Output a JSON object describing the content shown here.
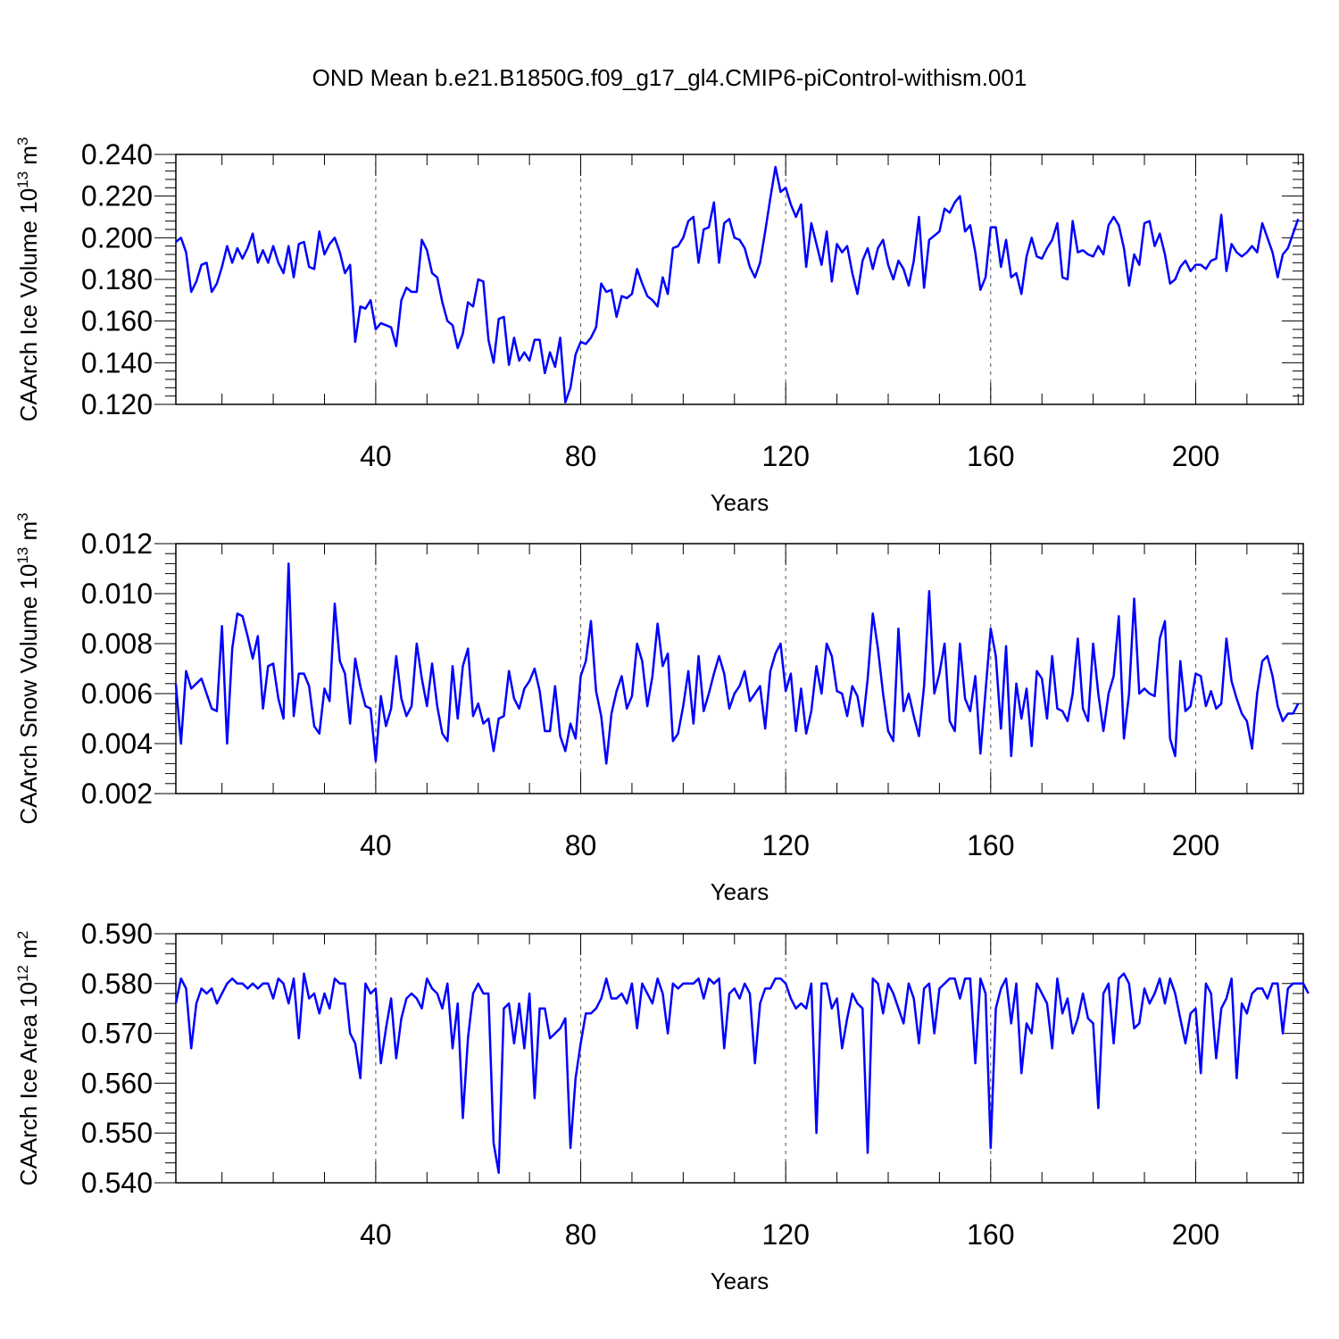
{
  "title": "OND Mean b.e21.B1850G.f09_g17_gl4.CMIP6-piControl-withism.001",
  "colors": {
    "series": "#0000ff",
    "axis": "#000000",
    "grid": "#555555"
  },
  "chart_data": [
    {
      "type": "line",
      "title": "",
      "ylabel_prefix": "CAArch Ice Volume 10",
      "ylabel_exp": "13",
      "ylabel_unit": " m",
      "ylabel_unit_exp": "3",
      "xlabel": "Years",
      "xlim": [
        1,
        221
      ],
      "ylim": [
        0.12,
        0.24
      ],
      "yticks": [
        0.12,
        0.14,
        0.16,
        0.18,
        0.2,
        0.22,
        0.24
      ],
      "ytick_labels": [
        "0.120",
        "0.140",
        "0.160",
        "0.180",
        "0.200",
        "0.220",
        "0.240"
      ],
      "xticks": [
        40,
        80,
        120,
        160,
        200
      ],
      "xtick_labels": [
        "40",
        "80",
        "120",
        "160",
        "200"
      ],
      "grid": "vertical dashed at x ticks",
      "x_start": 1,
      "values": [
        0.198,
        0.2,
        0.193,
        0.174,
        0.179,
        0.187,
        0.188,
        0.174,
        0.178,
        0.186,
        0.196,
        0.188,
        0.195,
        0.19,
        0.195,
        0.202,
        0.188,
        0.194,
        0.188,
        0.196,
        0.188,
        0.183,
        0.196,
        0.181,
        0.197,
        0.198,
        0.186,
        0.185,
        0.203,
        0.192,
        0.197,
        0.2,
        0.193,
        0.183,
        0.187,
        0.15,
        0.167,
        0.166,
        0.17,
        0.156,
        0.159,
        0.158,
        0.157,
        0.148,
        0.17,
        0.176,
        0.174,
        0.174,
        0.199,
        0.194,
        0.183,
        0.181,
        0.169,
        0.16,
        0.158,
        0.147,
        0.154,
        0.169,
        0.167,
        0.18,
        0.179,
        0.151,
        0.14,
        0.161,
        0.162,
        0.139,
        0.152,
        0.141,
        0.145,
        0.141,
        0.151,
        0.151,
        0.135,
        0.145,
        0.138,
        0.152,
        0.121,
        0.128,
        0.144,
        0.15,
        0.149,
        0.152,
        0.157,
        0.178,
        0.174,
        0.175,
        0.162,
        0.172,
        0.171,
        0.173,
        0.185,
        0.178,
        0.172,
        0.17,
        0.167,
        0.181,
        0.173,
        0.195,
        0.196,
        0.2,
        0.208,
        0.21,
        0.188,
        0.204,
        0.205,
        0.217,
        0.188,
        0.207,
        0.209,
        0.2,
        0.199,
        0.195,
        0.186,
        0.181,
        0.188,
        0.203,
        0.219,
        0.234,
        0.222,
        0.224,
        0.216,
        0.21,
        0.216,
        0.186,
        0.207,
        0.197,
        0.187,
        0.203,
        0.179,
        0.197,
        0.193,
        0.196,
        0.183,
        0.173,
        0.189,
        0.195,
        0.185,
        0.195,
        0.199,
        0.187,
        0.18,
        0.189,
        0.185,
        0.177,
        0.189,
        0.21,
        0.176,
        0.199,
        0.201,
        0.203,
        0.214,
        0.212,
        0.217,
        0.22,
        0.203,
        0.206,
        0.193,
        0.175,
        0.181,
        0.205,
        0.205,
        0.186,
        0.199,
        0.181,
        0.183,
        0.173,
        0.191,
        0.2,
        0.191,
        0.19,
        0.195,
        0.199,
        0.207,
        0.181,
        0.18,
        0.208,
        0.193,
        0.194,
        0.192,
        0.191,
        0.196,
        0.192,
        0.206,
        0.21,
        0.206,
        0.195,
        0.177,
        0.192,
        0.187,
        0.207,
        0.208,
        0.196,
        0.202,
        0.192,
        0.178,
        0.18,
        0.186,
        0.189,
        0.184,
        0.187,
        0.187,
        0.185,
        0.189,
        0.19,
        0.211,
        0.184,
        0.197,
        0.193,
        0.191,
        0.193,
        0.196,
        0.193,
        0.207,
        0.2,
        0.193,
        0.181,
        0.192,
        0.195,
        0.202,
        0.209
      ]
    },
    {
      "type": "line",
      "title": "",
      "ylabel_prefix": "CAArch Snow Volume 10",
      "ylabel_exp": "13",
      "ylabel_unit": " m",
      "ylabel_unit_exp": "3",
      "xlabel": "Years",
      "xlim": [
        1,
        221
      ],
      "ylim": [
        0.002,
        0.012
      ],
      "yticks": [
        0.002,
        0.004,
        0.006,
        0.008,
        0.01,
        0.012
      ],
      "ytick_labels": [
        "0.002",
        "0.004",
        "0.006",
        "0.008",
        "0.010",
        "0.012"
      ],
      "xticks": [
        40,
        80,
        120,
        160,
        200
      ],
      "xtick_labels": [
        "40",
        "80",
        "120",
        "160",
        "200"
      ],
      "grid": "vertical dashed at x ticks",
      "x_start": 1,
      "values": [
        0.0064,
        0.004,
        0.0069,
        0.0062,
        0.0064,
        0.0066,
        0.006,
        0.0054,
        0.0053,
        0.0087,
        0.004,
        0.0078,
        0.0092,
        0.0091,
        0.0083,
        0.0074,
        0.0083,
        0.0054,
        0.0071,
        0.0072,
        0.0058,
        0.005,
        0.0112,
        0.0051,
        0.0068,
        0.0068,
        0.0063,
        0.0047,
        0.0044,
        0.0062,
        0.0057,
        0.0096,
        0.0073,
        0.0068,
        0.0048,
        0.0074,
        0.0063,
        0.0055,
        0.0054,
        0.0033,
        0.0059,
        0.0047,
        0.0054,
        0.0075,
        0.0058,
        0.0051,
        0.0055,
        0.008,
        0.0066,
        0.0055,
        0.0072,
        0.0055,
        0.0044,
        0.0041,
        0.0071,
        0.005,
        0.0071,
        0.0078,
        0.0051,
        0.0056,
        0.0048,
        0.005,
        0.0037,
        0.005,
        0.0051,
        0.0069,
        0.0058,
        0.0054,
        0.0062,
        0.0065,
        0.007,
        0.0061,
        0.0045,
        0.0045,
        0.0063,
        0.0043,
        0.0037,
        0.0048,
        0.0042,
        0.0067,
        0.0073,
        0.0089,
        0.0061,
        0.0051,
        0.0032,
        0.0052,
        0.0061,
        0.0067,
        0.0054,
        0.0059,
        0.008,
        0.0073,
        0.0055,
        0.0067,
        0.0088,
        0.0071,
        0.0076,
        0.0041,
        0.0044,
        0.0055,
        0.0069,
        0.0048,
        0.0075,
        0.0053,
        0.006,
        0.0068,
        0.0075,
        0.0068,
        0.0054,
        0.006,
        0.0063,
        0.0069,
        0.0057,
        0.006,
        0.0063,
        0.0046,
        0.0069,
        0.0076,
        0.008,
        0.0061,
        0.0068,
        0.0045,
        0.0062,
        0.0044,
        0.0053,
        0.0071,
        0.006,
        0.008,
        0.0075,
        0.0061,
        0.006,
        0.0051,
        0.0063,
        0.0059,
        0.0047,
        0.0066,
        0.0092,
        0.0078,
        0.006,
        0.0045,
        0.0041,
        0.0086,
        0.0053,
        0.006,
        0.0051,
        0.0043,
        0.0063,
        0.0101,
        0.006,
        0.0068,
        0.008,
        0.0049,
        0.0045,
        0.008,
        0.0058,
        0.0053,
        0.0067,
        0.0036,
        0.0061,
        0.0086,
        0.0075,
        0.0046,
        0.0079,
        0.0035,
        0.0064,
        0.005,
        0.0062,
        0.0039,
        0.0069,
        0.0066,
        0.005,
        0.0075,
        0.0054,
        0.0053,
        0.0049,
        0.006,
        0.0082,
        0.0054,
        0.0049,
        0.008,
        0.006,
        0.0045,
        0.006,
        0.0067,
        0.0091,
        0.0042,
        0.006,
        0.0098,
        0.006,
        0.0062,
        0.006,
        0.0059,
        0.0082,
        0.0089,
        0.0042,
        0.0035,
        0.0073,
        0.0053,
        0.0055,
        0.0068,
        0.0067,
        0.0055,
        0.0061,
        0.0054,
        0.0056,
        0.0082,
        0.0065,
        0.0058,
        0.0052,
        0.0049,
        0.0038,
        0.006,
        0.0073,
        0.0075,
        0.0067,
        0.0055,
        0.0049,
        0.0052,
        0.0052,
        0.0056
      ]
    },
    {
      "type": "line",
      "title": "",
      "ylabel_prefix": "CAArch Ice Area 10",
      "ylabel_exp": "12",
      "ylabel_unit": " m",
      "ylabel_unit_exp": "2",
      "xlabel": "Years",
      "xlim": [
        1,
        221
      ],
      "ylim": [
        0.54,
        0.59
      ],
      "yticks": [
        0.54,
        0.55,
        0.56,
        0.57,
        0.58,
        0.59
      ],
      "ytick_labels": [
        "0.540",
        "0.550",
        "0.560",
        "0.570",
        "0.580",
        "0.590"
      ],
      "xticks": [
        40,
        80,
        120,
        160,
        200
      ],
      "xtick_labels": [
        "40",
        "80",
        "120",
        "160",
        "200"
      ],
      "grid": "vertical dashed at x ticks",
      "x_start": 1,
      "values": [
        0.576,
        0.581,
        0.579,
        0.567,
        0.576,
        0.579,
        0.578,
        0.579,
        0.576,
        0.578,
        0.58,
        0.581,
        0.58,
        0.58,
        0.579,
        0.58,
        0.579,
        0.58,
        0.58,
        0.577,
        0.581,
        0.58,
        0.576,
        0.581,
        0.569,
        0.582,
        0.577,
        0.578,
        0.574,
        0.578,
        0.575,
        0.581,
        0.58,
        0.58,
        0.57,
        0.568,
        0.561,
        0.58,
        0.578,
        0.579,
        0.564,
        0.571,
        0.577,
        0.565,
        0.573,
        0.577,
        0.578,
        0.577,
        0.575,
        0.581,
        0.579,
        0.578,
        0.575,
        0.58,
        0.567,
        0.576,
        0.553,
        0.569,
        0.578,
        0.58,
        0.578,
        0.578,
        0.548,
        0.542,
        0.575,
        0.576,
        0.568,
        0.576,
        0.567,
        0.578,
        0.557,
        0.575,
        0.575,
        0.569,
        0.57,
        0.571,
        0.573,
        0.547,
        0.561,
        0.568,
        0.574,
        0.574,
        0.575,
        0.577,
        0.581,
        0.577,
        0.577,
        0.578,
        0.576,
        0.58,
        0.571,
        0.58,
        0.578,
        0.576,
        0.581,
        0.578,
        0.57,
        0.58,
        0.579,
        0.58,
        0.58,
        0.58,
        0.581,
        0.577,
        0.581,
        0.58,
        0.581,
        0.567,
        0.578,
        0.579,
        0.577,
        0.58,
        0.578,
        0.564,
        0.576,
        0.579,
        0.579,
        0.581,
        0.581,
        0.58,
        0.577,
        0.575,
        0.576,
        0.575,
        0.58,
        0.55,
        0.58,
        0.58,
        0.575,
        0.577,
        0.567,
        0.573,
        0.578,
        0.576,
        0.575,
        0.546,
        0.581,
        0.58,
        0.574,
        0.58,
        0.578,
        0.575,
        0.572,
        0.58,
        0.577,
        0.568,
        0.579,
        0.58,
        0.57,
        0.579,
        0.58,
        0.581,
        0.581,
        0.577,
        0.581,
        0.581,
        0.564,
        0.581,
        0.578,
        0.547,
        0.575,
        0.579,
        0.581,
        0.572,
        0.58,
        0.562,
        0.572,
        0.57,
        0.58,
        0.578,
        0.576,
        0.567,
        0.581,
        0.574,
        0.577,
        0.57,
        0.573,
        0.578,
        0.573,
        0.572,
        0.555,
        0.578,
        0.58,
        0.568,
        0.581,
        0.582,
        0.58,
        0.571,
        0.572,
        0.579,
        0.576,
        0.578,
        0.581,
        0.576,
        0.581,
        0.578,
        0.573,
        0.568,
        0.574,
        0.575,
        0.562,
        0.58,
        0.578,
        0.565,
        0.575,
        0.577,
        0.581,
        0.561,
        0.576,
        0.574,
        0.578,
        0.579,
        0.579,
        0.577,
        0.58,
        0.58,
        0.57,
        0.579,
        0.58,
        0.58,
        0.58,
        0.578
      ]
    }
  ]
}
